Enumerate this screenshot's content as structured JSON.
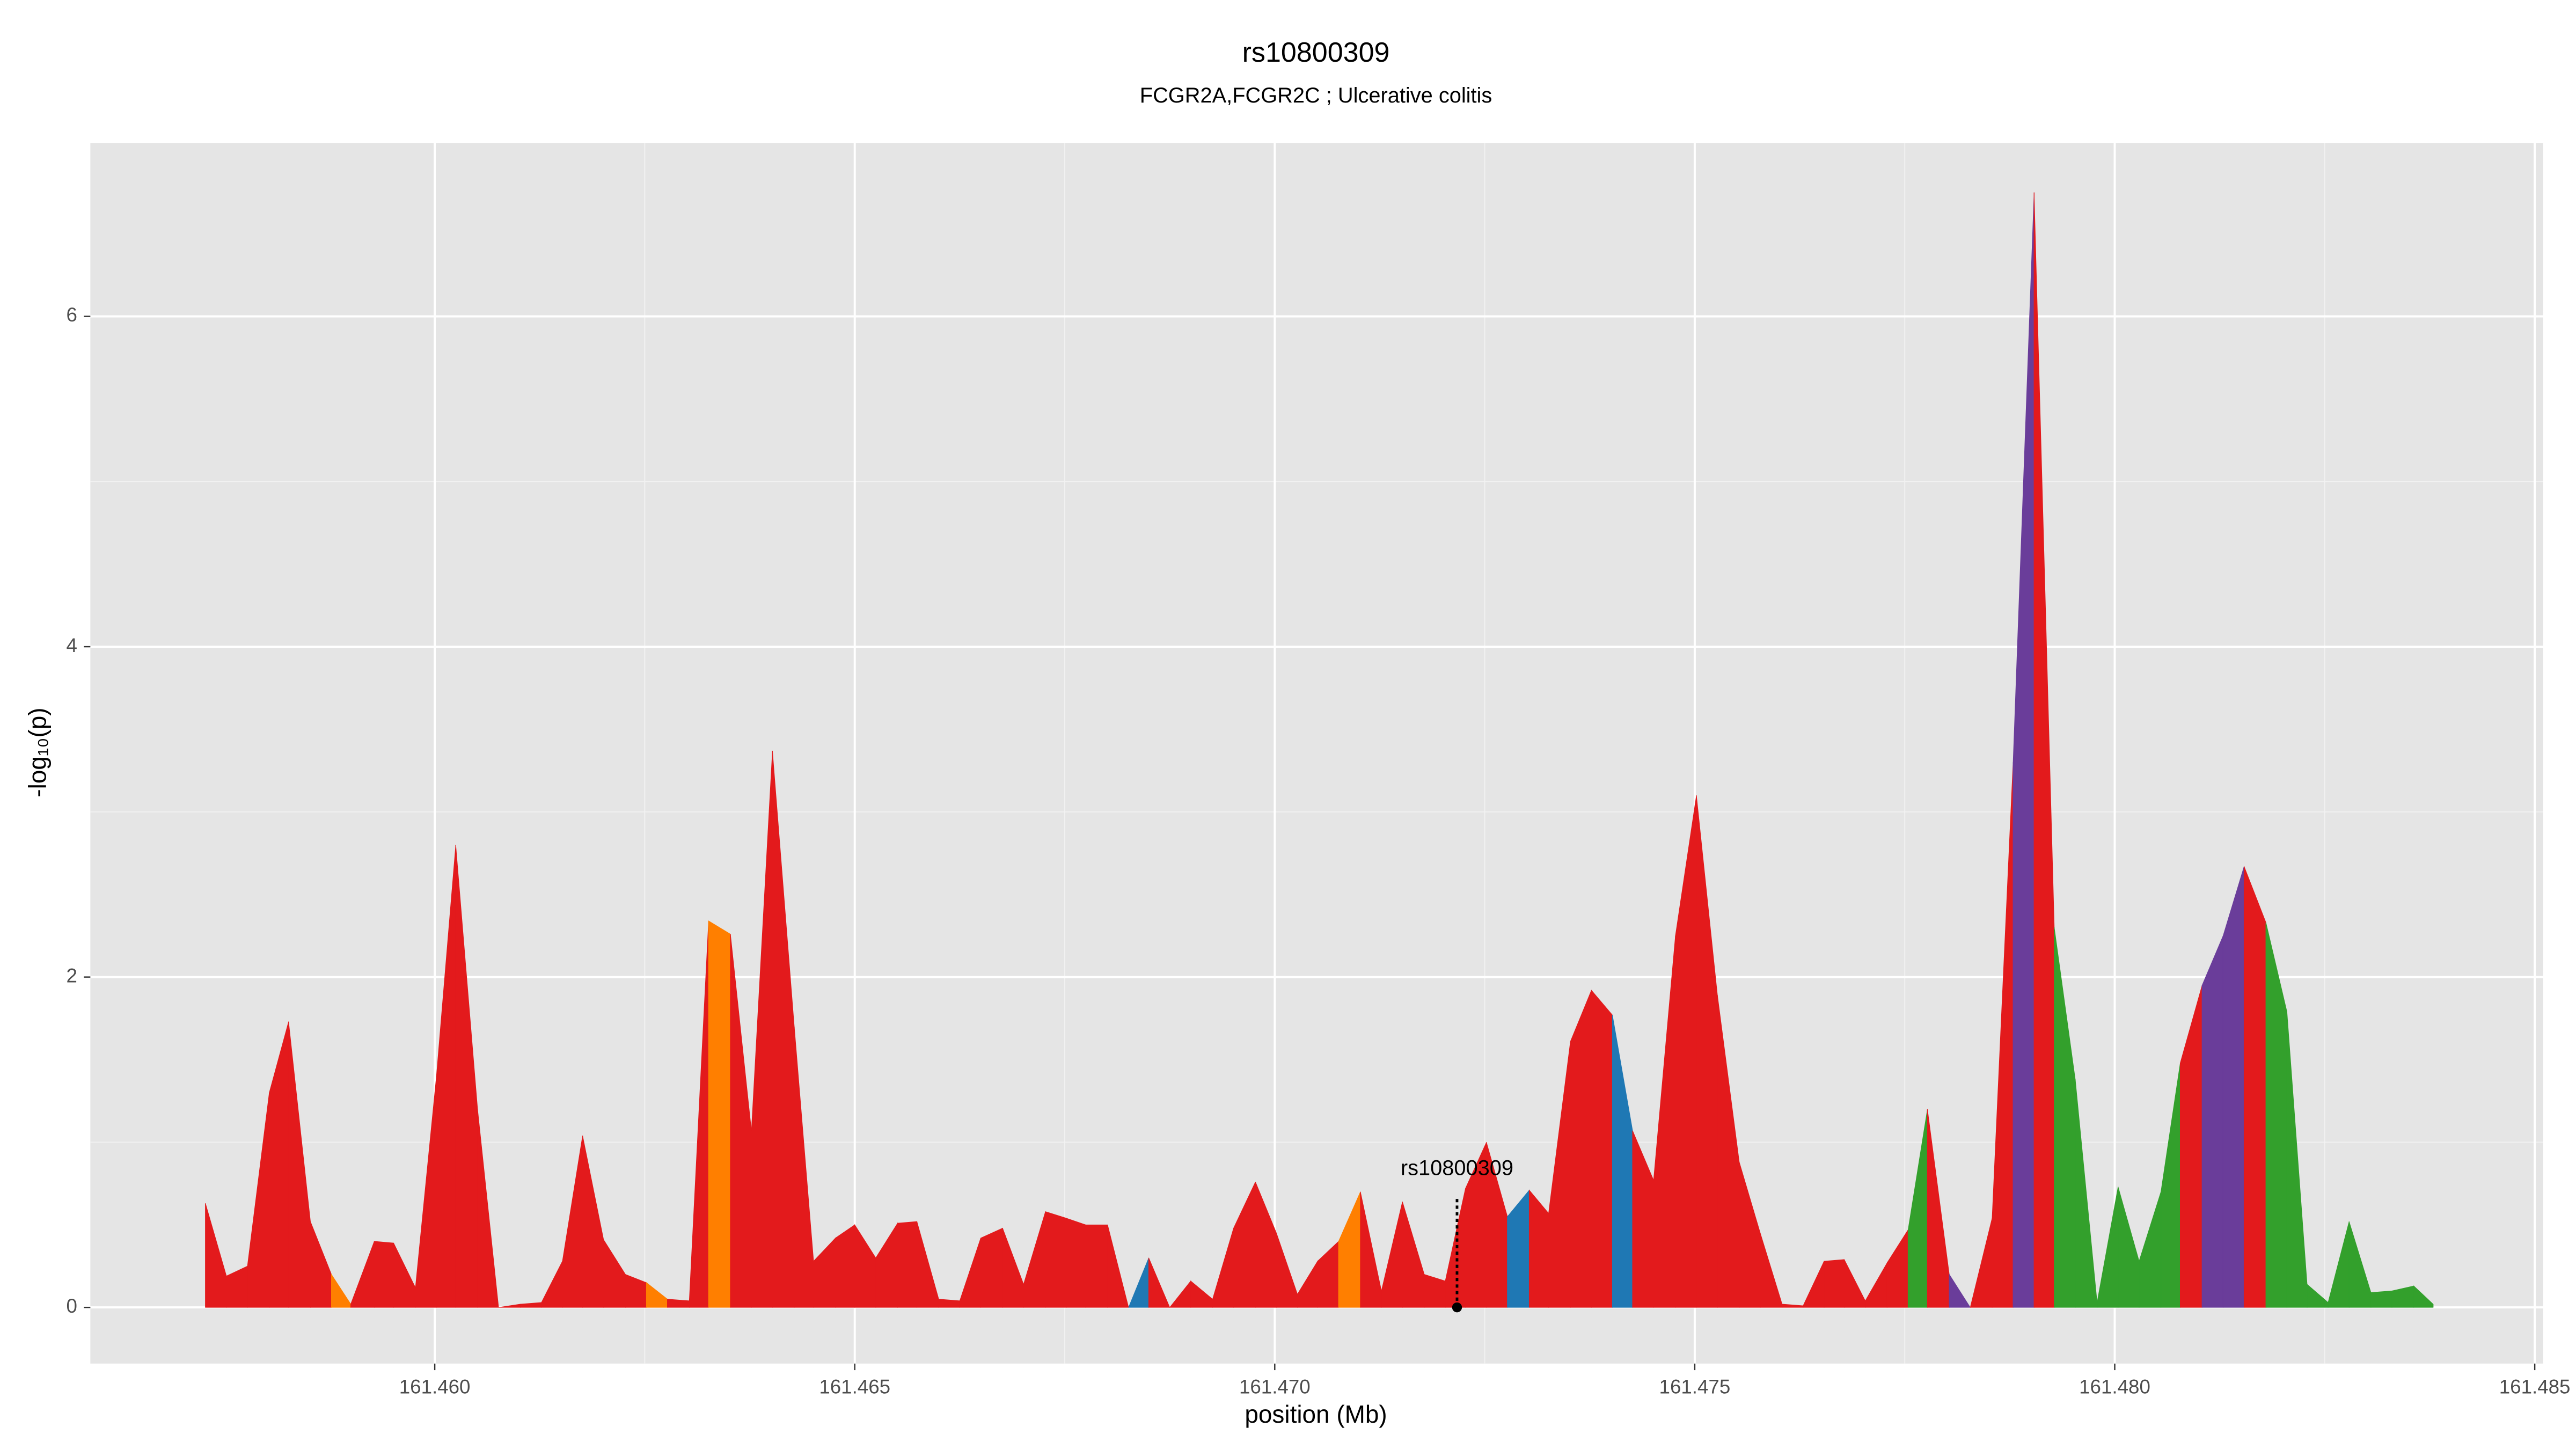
{
  "chart_data": {
    "type": "area",
    "title": "rs10800309",
    "subtitle": "FCGR2A,FCGR2C ; Ulcerative colitis",
    "x_label": "position (Mb)",
    "y_label": "-log₁₀(p)",
    "xlim": [
      161.4559,
      161.4851
    ],
    "ylim": [
      -0.34,
      7.05
    ],
    "xticks": [
      {
        "value": 161.46,
        "label": "161.460"
      },
      161.465,
      {
        "value": 161.47,
        "label": "161.470"
      },
      161.475,
      {
        "value": 161.48,
        "label": "161.480"
      },
      161.485
    ],
    "yticks": [
      0,
      2,
      4,
      6
    ],
    "grid": true,
    "x": [
      161.45727,
      161.45752,
      161.45777,
      161.45803,
      161.45826,
      161.45852,
      161.45877,
      161.459,
      161.45928,
      161.45951,
      161.45977,
      161.46002,
      161.46025,
      161.46051,
      161.46076,
      161.46102,
      161.46127,
      161.46152,
      161.46176,
      161.46201,
      161.46227,
      161.46252,
      161.46277,
      161.46303,
      161.46326,
      161.46352,
      161.46377,
      161.46402,
      161.46428,
      161.46451,
      161.46477,
      161.465,
      161.46525,
      161.46551,
      161.46574,
      161.466,
      161.46625,
      161.4665,
      161.46676,
      161.46701,
      161.46727,
      161.46752,
      161.46775,
      161.46801,
      161.46826,
      161.4685,
      161.46875,
      161.469,
      161.46926,
      161.46951,
      161.46977,
      161.47002,
      161.47027,
      161.47051,
      161.47076,
      161.47102,
      161.47127,
      161.47152,
      161.47178,
      161.47203,
      161.47227,
      161.47252,
      161.47277,
      161.47303,
      161.47326,
      161.47352,
      161.47377,
      161.47402,
      161.47426,
      161.47451,
      161.47477,
      161.47502,
      161.47527,
      161.47553,
      161.47578,
      161.47604,
      161.47629,
      161.47654,
      161.47678,
      161.47703,
      161.47729,
      161.47754,
      161.47777,
      161.47803,
      161.47828,
      161.47854,
      161.47879,
      161.47904,
      161.47928,
      161.47953,
      161.47979,
      161.48004,
      161.48029,
      161.48055,
      161.48078,
      161.48104,
      161.48129,
      161.48154,
      161.4818,
      161.48205,
      161.48229,
      161.48254,
      161.48279,
      161.48305,
      161.4833,
      161.48356,
      161.48379
    ],
    "values": [
      0.63,
      0.19,
      0.25,
      1.3,
      1.73,
      0.52,
      0.2,
      0.02,
      0.4,
      0.39,
      0.12,
      1.4,
      2.8,
      1.2,
      0.0,
      0.02,
      0.03,
      0.28,
      1.04,
      0.41,
      0.2,
      0.15,
      0.05,
      0.04,
      2.34,
      2.26,
      1.07,
      3.37,
      1.7,
      0.28,
      0.42,
      0.5,
      0.3,
      0.51,
      0.52,
      0.05,
      0.04,
      0.42,
      0.48,
      0.14,
      0.58,
      0.54,
      0.5,
      0.5,
      0.0,
      0.3,
      0.0,
      0.16,
      0.05,
      0.48,
      0.76,
      0.45,
      0.08,
      0.28,
      0.4,
      0.7,
      0.1,
      0.64,
      0.2,
      0.16,
      0.72,
      1.0,
      0.55,
      0.71,
      0.57,
      1.61,
      1.92,
      1.77,
      1.07,
      0.77,
      2.25,
      3.1,
      1.89,
      0.88,
      0.45,
      0.02,
      0.01,
      0.28,
      0.29,
      0.04,
      0.27,
      0.47,
      1.2,
      0.2,
      0.0,
      0.54,
      3.3,
      6.75,
      2.3,
      1.38,
      0.03,
      0.73,
      0.28,
      0.7,
      1.48,
      1.95,
      2.25,
      2.67,
      2.33,
      1.79,
      0.14,
      0.03,
      0.52,
      0.09,
      0.1,
      0.13,
      0.02
    ],
    "colors": [
      "#e31a1c",
      "#e31a1c",
      "#e31a1c",
      "#e31a1c",
      "#e31a1c",
      "#e31a1c",
      "#ff7f00",
      "#e31a1c",
      "#e31a1c",
      "#e31a1c",
      "#e31a1c",
      "#e31a1c",
      "#e31a1c",
      "#e31a1c",
      "#e31a1c",
      "#e31a1c",
      "#e31a1c",
      "#e31a1c",
      "#e31a1c",
      "#e31a1c",
      "#e31a1c",
      "#ff7f00",
      "#e31a1c",
      "#e31a1c",
      "#ff7f00",
      "#e31a1c",
      "#e31a1c",
      "#e31a1c",
      "#e31a1c",
      "#e31a1c",
      "#e31a1c",
      "#e31a1c",
      "#e31a1c",
      "#e31a1c",
      "#e31a1c",
      "#e31a1c",
      "#e31a1c",
      "#e31a1c",
      "#e31a1c",
      "#e31a1c",
      "#e31a1c",
      "#e31a1c",
      "#e31a1c",
      "#e31a1c",
      "#1f78b4",
      "#e31a1c",
      "#e31a1c",
      "#e31a1c",
      "#e31a1c",
      "#e31a1c",
      "#e31a1c",
      "#e31a1c",
      "#e31a1c",
      "#e31a1c",
      "#ff7f00",
      "#e31a1c",
      "#e31a1c",
      "#e31a1c",
      "#e31a1c",
      "#e31a1c",
      "#e31a1c",
      "#e31a1c",
      "#1f78b4",
      "#e31a1c",
      "#e31a1c",
      "#e31a1c",
      "#e31a1c",
      "#1f78b4",
      "#e31a1c",
      "#e31a1c",
      "#e31a1c",
      "#e31a1c",
      "#e31a1c",
      "#e31a1c",
      "#e31a1c",
      "#e31a1c",
      "#e31a1c",
      "#e31a1c",
      "#e31a1c",
      "#e31a1c",
      "#e31a1c",
      "#33a02c",
      "#e31a1c",
      "#6a3d9a",
      "#e31a1c",
      "#e31a1c",
      "#6a3d9a",
      "#e31a1c",
      "#33a02c",
      "#33a02c",
      "#33a02c",
      "#33a02c",
      "#33a02c",
      "#33a02c",
      "#e31a1c",
      "#6a3d9a",
      "#6a3d9a",
      "#e31a1c",
      "#33a02c",
      "#33a02c",
      "#33a02c",
      "#33a02c",
      "#33a02c",
      "#33a02c",
      "#33a02c",
      "#33a02c",
      "#33a02c"
    ],
    "annotation": {
      "text": "rs10800309",
      "x": 161.47217,
      "y": 0
    }
  }
}
